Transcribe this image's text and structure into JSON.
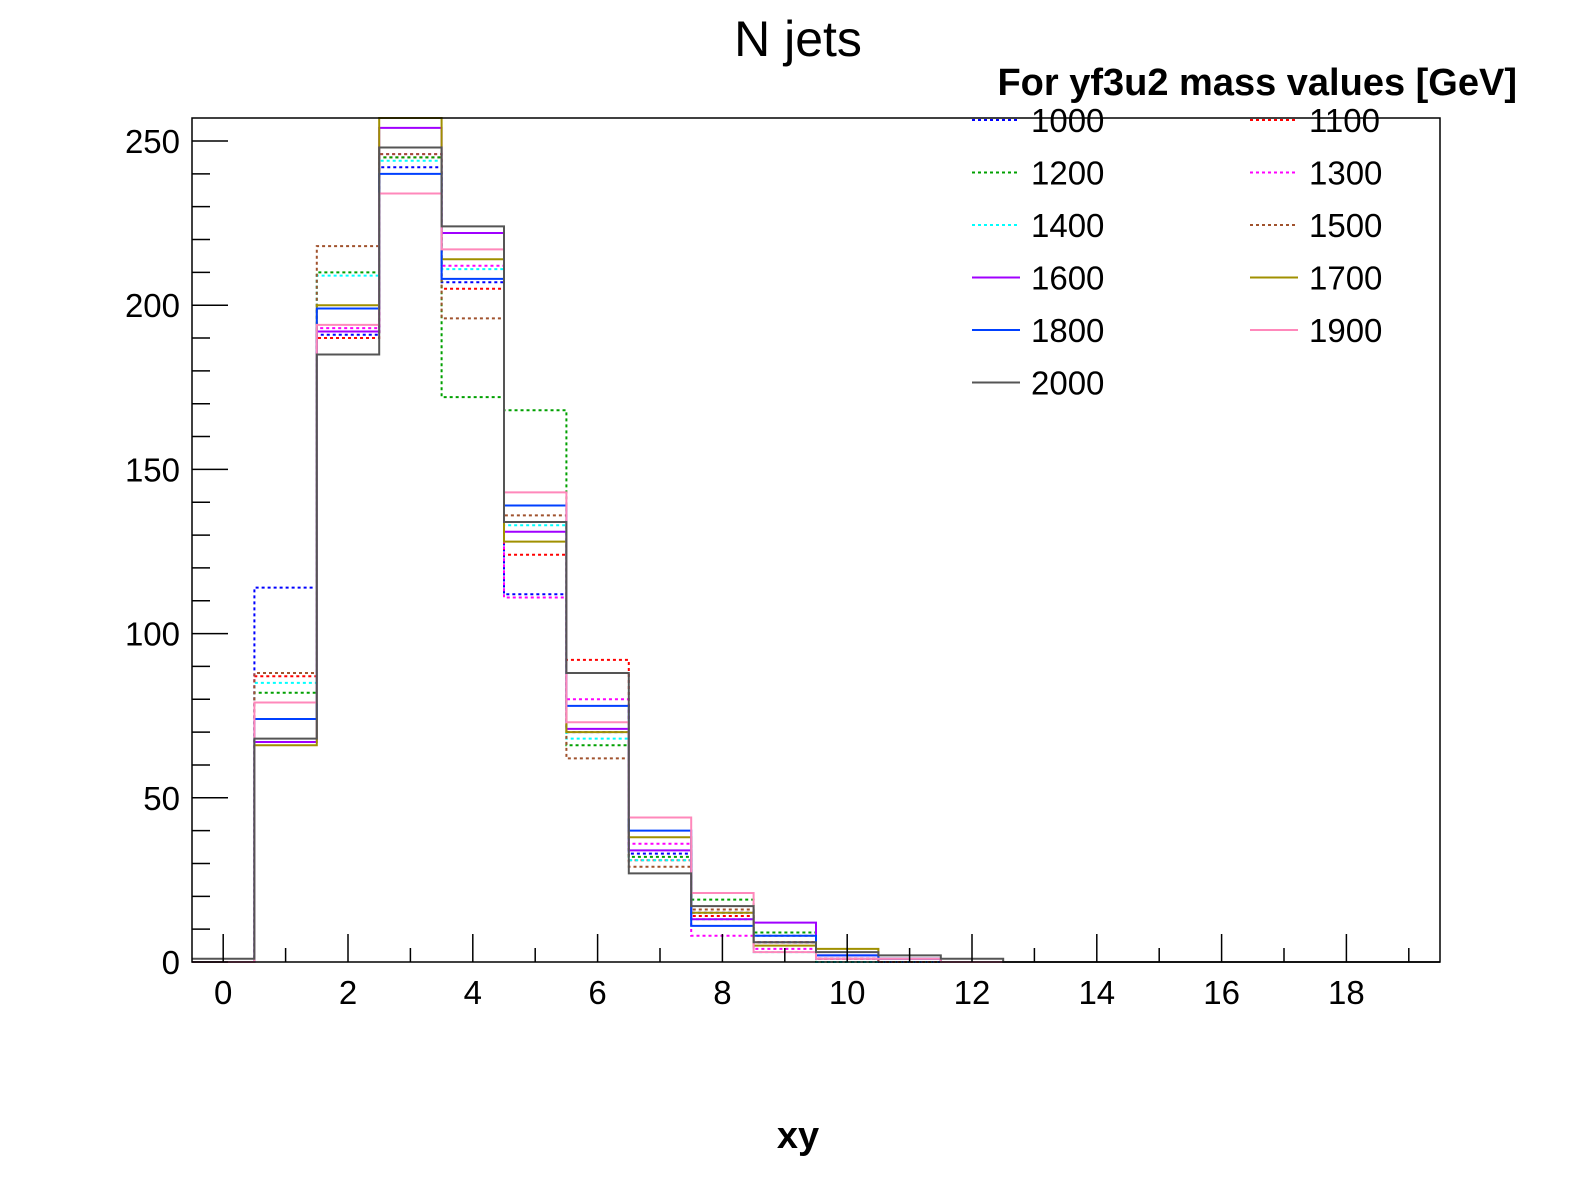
{
  "chart_data": {
    "type": "histogram",
    "title": "N jets",
    "xlabel": "xy",
    "ylabel": "",
    "xlim": [
      -0.5,
      19.5
    ],
    "ylim": [
      0,
      257
    ],
    "x_ticks": [
      0,
      2,
      4,
      6,
      8,
      10,
      12,
      14,
      16,
      18
    ],
    "y_ticks": [
      0,
      50,
      100,
      150,
      200,
      250
    ],
    "grid": false,
    "legend": {
      "header": "For yf3u2 mass values [GeV]",
      "placement": "top-right",
      "columns": 2
    },
    "bins": [
      0,
      1,
      2,
      3,
      4,
      5,
      6,
      7,
      8,
      9,
      10,
      11,
      12,
      13,
      14,
      15,
      16,
      17,
      18,
      19
    ],
    "series": [
      {
        "name": "1000",
        "color": "#0000ff",
        "style": "dotted",
        "values": [
          0,
          114,
          191,
          242,
          207,
          112,
          70,
          33,
          15,
          6,
          1,
          0,
          0,
          0,
          0,
          0,
          0,
          0,
          0,
          0
        ]
      },
      {
        "name": "1100",
        "color": "#ff0000",
        "style": "dotted",
        "values": [
          0,
          87,
          190,
          245,
          205,
          124,
          92,
          31,
          14,
          6,
          1,
          0,
          0,
          0,
          0,
          0,
          0,
          0,
          0,
          0
        ]
      },
      {
        "name": "1200",
        "color": "#00a000",
        "style": "dotted",
        "values": [
          0,
          82,
          210,
          245,
          172,
          168,
          66,
          32,
          19,
          9,
          0,
          0,
          0,
          0,
          0,
          0,
          0,
          0,
          0,
          0
        ]
      },
      {
        "name": "1300",
        "color": "#ff00ff",
        "style": "dotted",
        "values": [
          0,
          88,
          193,
          246,
          212,
          111,
          80,
          36,
          8,
          4,
          1,
          0,
          0,
          0,
          0,
          0,
          0,
          0,
          0,
          0
        ]
      },
      {
        "name": "1400",
        "color": "#00ffff",
        "style": "dotted",
        "values": [
          0,
          85,
          209,
          244,
          211,
          133,
          68,
          31,
          13,
          3,
          0,
          0,
          0,
          0,
          0,
          0,
          0,
          0,
          0,
          0
        ]
      },
      {
        "name": "1500",
        "color": "#a0522d",
        "style": "dotted",
        "values": [
          0,
          88,
          218,
          246,
          196,
          136,
          62,
          29,
          16,
          8,
          1,
          0,
          0,
          0,
          0,
          0,
          0,
          0,
          0,
          0
        ]
      },
      {
        "name": "1600",
        "color": "#a000ff",
        "style": "solid",
        "values": [
          0,
          67,
          192,
          254,
          222,
          131,
          71,
          34,
          13,
          12,
          2,
          1,
          0,
          0,
          0,
          0,
          0,
          0,
          0,
          0
        ]
      },
      {
        "name": "1700",
        "color": "#a09000",
        "style": "solid",
        "values": [
          0,
          66,
          200,
          257,
          214,
          128,
          70,
          38,
          15,
          5,
          4,
          1,
          0,
          0,
          0,
          0,
          0,
          0,
          0,
          0
        ]
      },
      {
        "name": "1800",
        "color": "#0040ff",
        "style": "solid",
        "values": [
          0,
          74,
          199,
          240,
          208,
          139,
          78,
          40,
          11,
          8,
          2,
          1,
          0,
          0,
          0,
          0,
          0,
          0,
          0,
          0
        ]
      },
      {
        "name": "1900",
        "color": "#ff88bb",
        "style": "solid",
        "values": [
          0,
          79,
          194,
          234,
          217,
          143,
          73,
          44,
          21,
          3,
          1,
          1,
          0,
          0,
          0,
          0,
          0,
          0,
          0,
          0
        ]
      },
      {
        "name": "2000",
        "color": "#555555",
        "style": "solid",
        "values": [
          1,
          68,
          185,
          248,
          224,
          134,
          88,
          27,
          17,
          6,
          3,
          2,
          1,
          0,
          0,
          0,
          0,
          0,
          0,
          0
        ]
      }
    ]
  }
}
